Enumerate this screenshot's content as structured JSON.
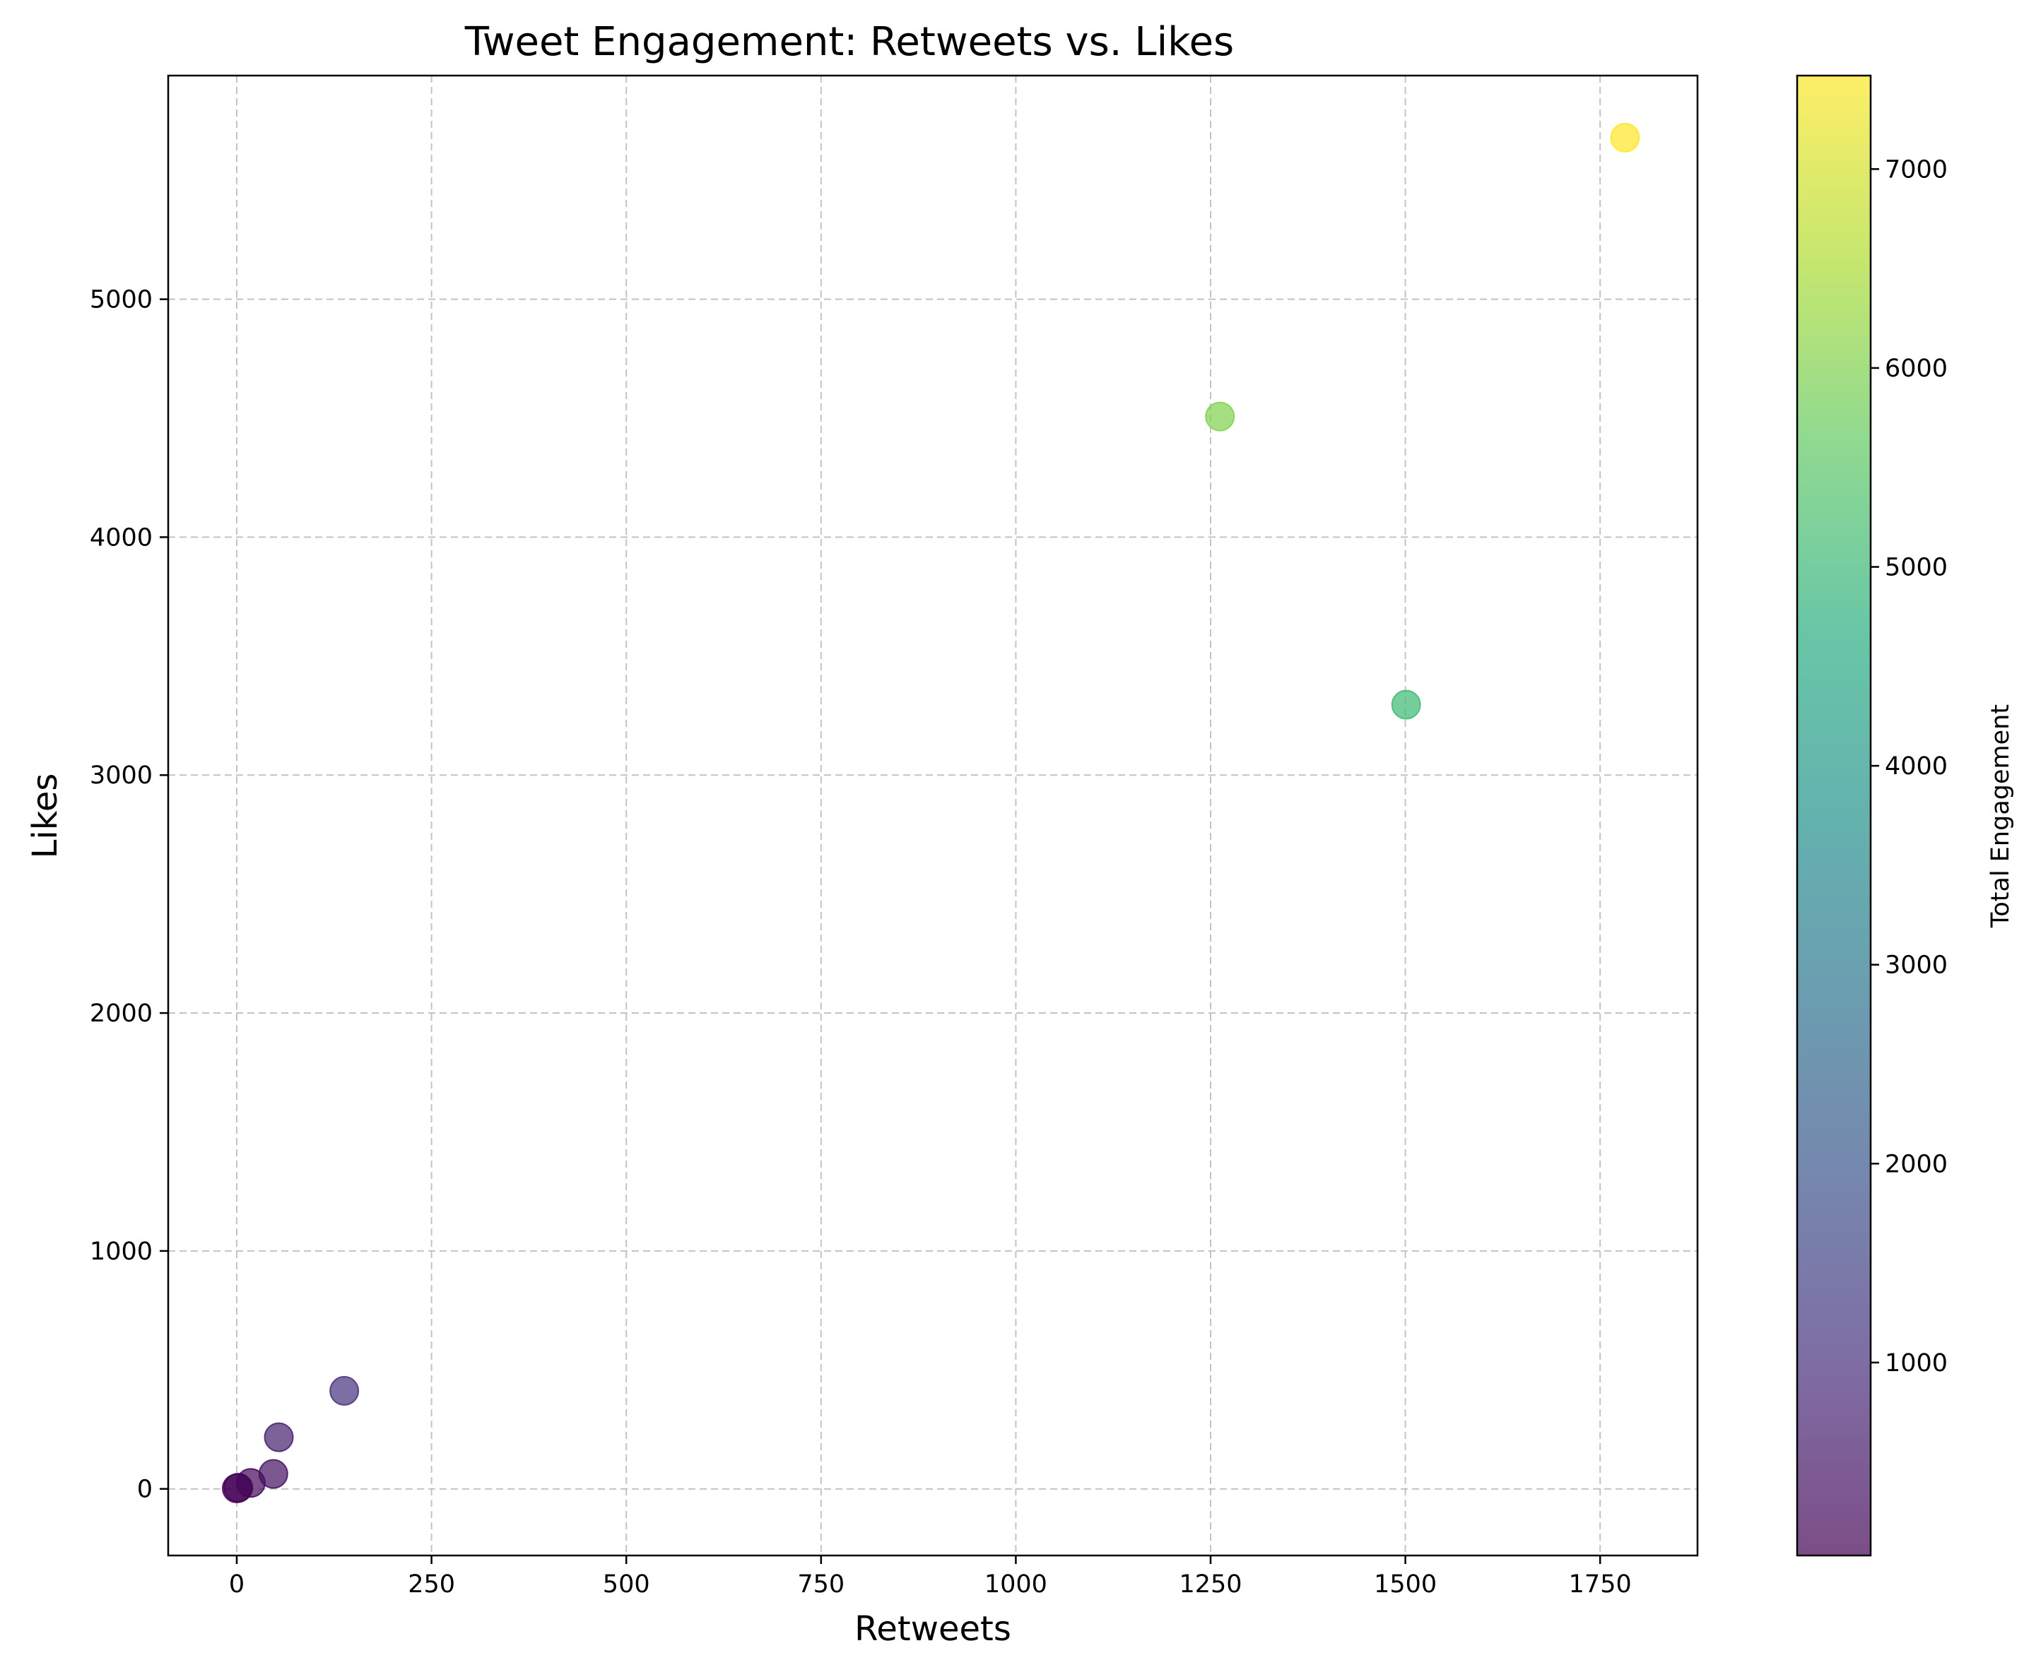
{
  "chart_data": {
    "type": "scatter",
    "title": "Tweet Engagement: Retweets vs. Likes",
    "xlabel": "Retweets",
    "ylabel": "Likes",
    "xlim": [
      -88,
      1875
    ],
    "ylim": [
      -280,
      5940
    ],
    "xticks": [
      0,
      250,
      500,
      750,
      1000,
      1250,
      1500,
      1750
    ],
    "yticks": [
      0,
      1000,
      2000,
      3000,
      4000,
      5000
    ],
    "grid": true,
    "colormap": "viridis",
    "marker_alpha": 0.7,
    "colorbar": {
      "label": "Total Engagement",
      "range": [
        30,
        7470
      ],
      "ticks": [
        1000,
        2000,
        3000,
        4000,
        5000,
        6000,
        7000
      ]
    },
    "points": [
      {
        "x": 0,
        "y": 2,
        "c": 30
      },
      {
        "x": 2,
        "y": 5,
        "c": 60
      },
      {
        "x": 18,
        "y": 25,
        "c": 150
      },
      {
        "x": 47,
        "y": 63,
        "c": 320
      },
      {
        "x": 54,
        "y": 217,
        "c": 650
      },
      {
        "x": 138,
        "y": 412,
        "c": 1050
      },
      {
        "x": 1262,
        "y": 4507,
        "c": 6000
      },
      {
        "x": 1501,
        "y": 3296,
        "c": 5050
      },
      {
        "x": 1782,
        "y": 5679,
        "c": 7470
      }
    ]
  }
}
